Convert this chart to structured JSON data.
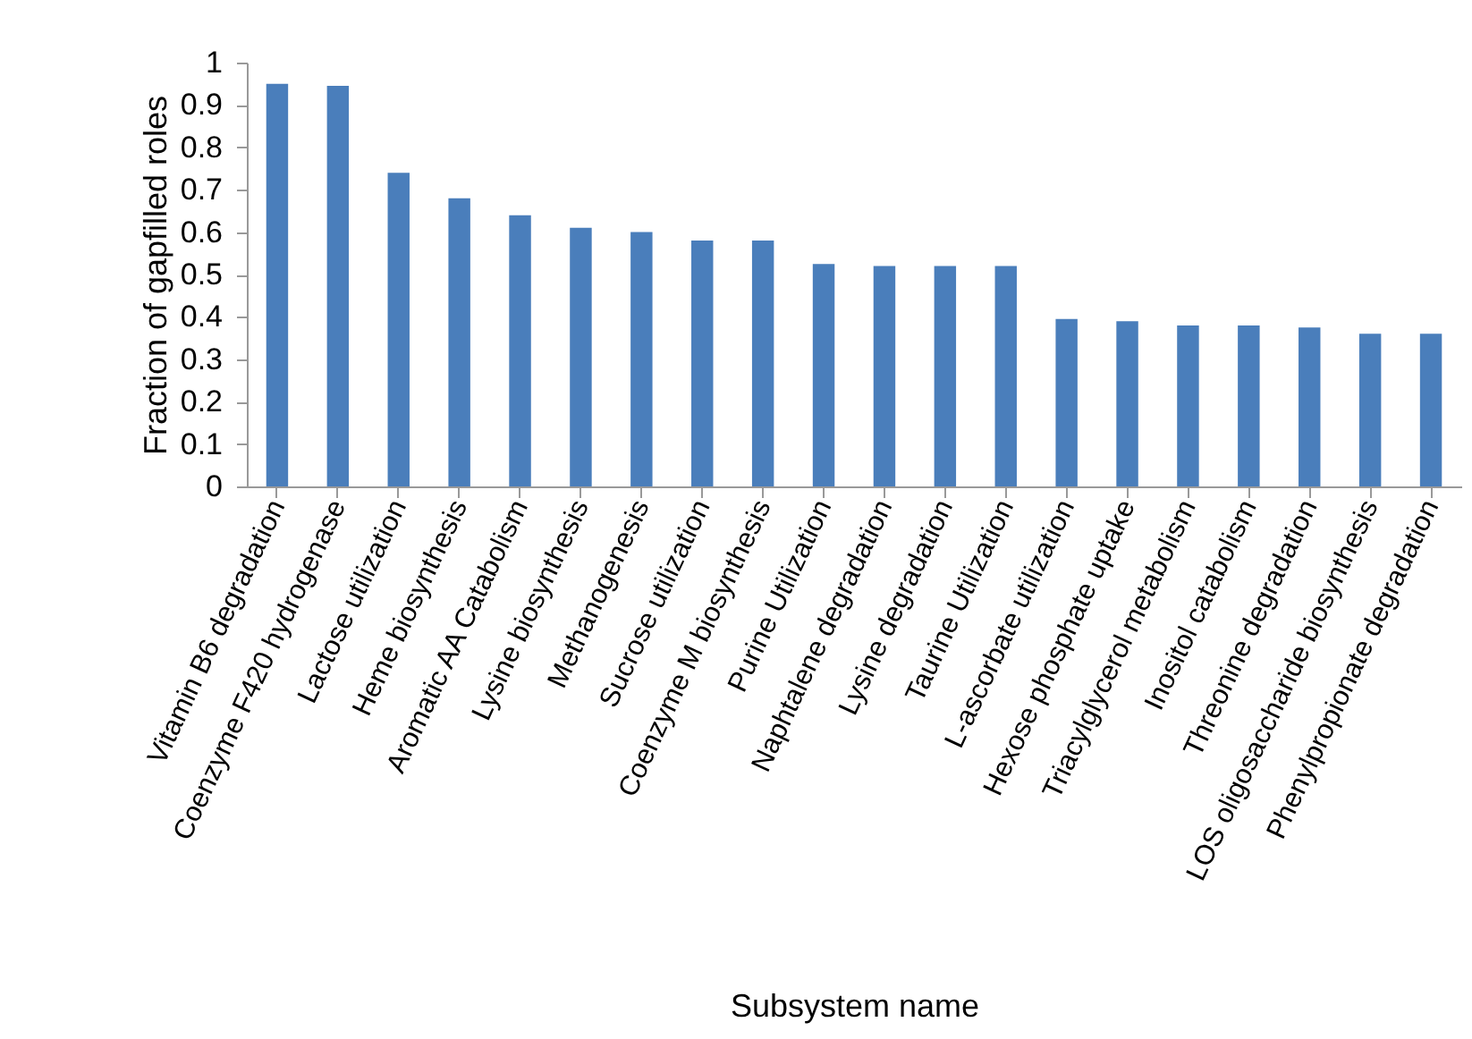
{
  "chart_data": {
    "type": "bar",
    "xlabel": "Subsystem name",
    "ylabel": "Fraction of gapfilled roles",
    "categories": [
      "Vitamin B6 degradation",
      "Coenzyme F420 hydrogenase",
      "Lactose utilization",
      "Heme biosynthesis",
      "Aromatic AA Catabolism",
      "Lysine biosynthesis",
      "Methanogenesis",
      "Sucrose utilization",
      "Coenzyme M biosynthesis",
      "Purine Utilization",
      "Naphtalene degradation",
      "Lysine degradation",
      "Taurine Utilization",
      "L-ascorbate utilization",
      "Hexose phosphate uptake",
      "Triacylglycerol metabolism",
      "Inositol catabolism",
      "Threonine degradation",
      "LOS oligosaccharide biosynthesis",
      "Phenylpropionate degradation"
    ],
    "values": [
      0.95,
      0.945,
      0.74,
      0.68,
      0.64,
      0.61,
      0.6,
      0.58,
      0.58,
      0.525,
      0.52,
      0.52,
      0.52,
      0.395,
      0.39,
      0.38,
      0.38,
      0.375,
      0.36,
      0.36
    ],
    "color": "#4a7ebb",
    "ylim": [
      0,
      1
    ],
    "yticks": [
      0,
      0.1,
      0.2,
      0.3,
      0.4,
      0.5,
      0.6,
      0.7,
      0.8,
      0.9,
      1
    ],
    "grid": false
  }
}
